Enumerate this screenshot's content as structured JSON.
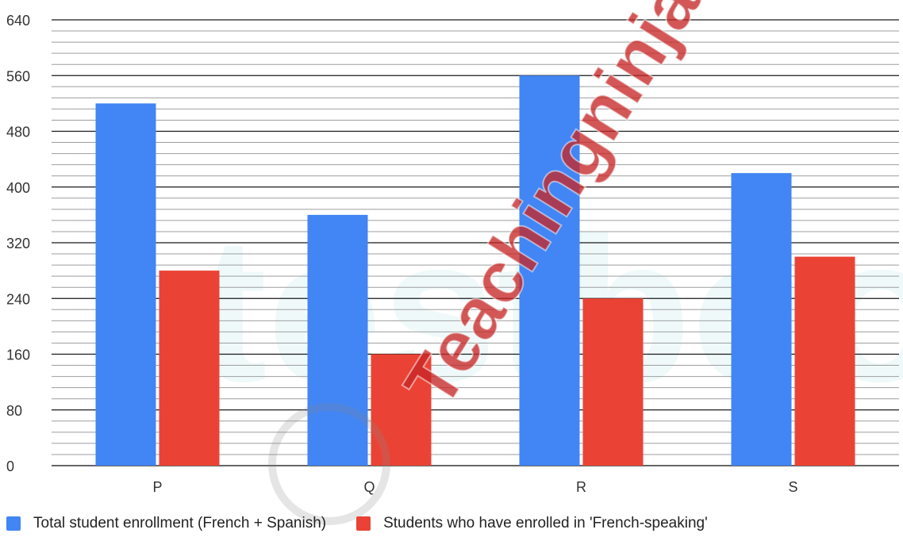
{
  "chart_data": {
    "type": "bar",
    "categories": [
      "P",
      "Q",
      "R",
      "S"
    ],
    "series": [
      {
        "name": "Total student enrollment (French + Spanish)",
        "values": [
          520,
          360,
          560,
          420
        ],
        "color": "#4285f4"
      },
      {
        "name": "Students who have enrolled in 'French-speaking'",
        "values": [
          280,
          160,
          240,
          300
        ],
        "color": "#ea4335"
      }
    ],
    "ylim": [
      0,
      640
    ],
    "yticks": [
      0,
      80,
      160,
      240,
      320,
      400,
      480,
      560,
      640
    ],
    "minor_gridlines_per_major": 4,
    "grid": true,
    "legend_position": "bottom-left",
    "title": "",
    "xlabel": "",
    "ylabel": ""
  },
  "watermarks": {
    "diagonal": "Teachingninja.in",
    "faint": "testbook"
  }
}
